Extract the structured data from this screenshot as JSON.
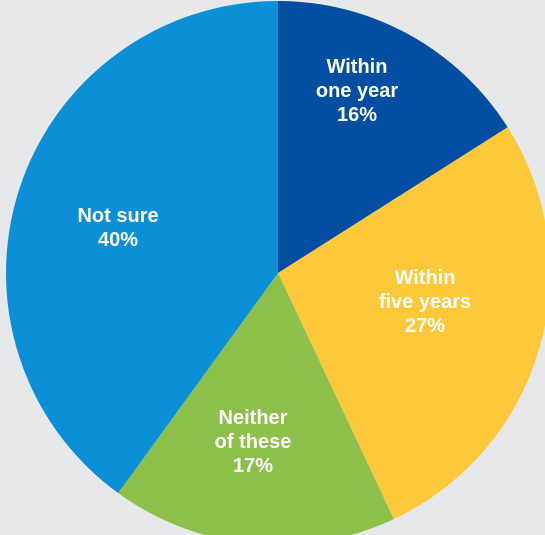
{
  "chart_data": {
    "type": "pie",
    "start_angle_deg": 0,
    "direction": "clockwise",
    "background": "#e7e8ea",
    "slices": [
      {
        "label_lines": [
          "Within",
          "one year"
        ],
        "value": 16,
        "value_text": "16%",
        "color": "#034ea2",
        "text_color": "#ffffff"
      },
      {
        "label_lines": [
          "Within",
          "five years"
        ],
        "value": 27,
        "value_text": "27%",
        "color": "#fdc93a",
        "text_color": "#ffffff"
      },
      {
        "label_lines": [
          "Neither",
          "of these"
        ],
        "value": 17,
        "value_text": "17%",
        "color": "#8dc04b",
        "text_color": "#ffffff"
      },
      {
        "label_lines": [
          "Not sure"
        ],
        "value": 40,
        "value_text": "40%",
        "color": "#0b8fd6",
        "text_color": "#ffffff"
      }
    ]
  }
}
